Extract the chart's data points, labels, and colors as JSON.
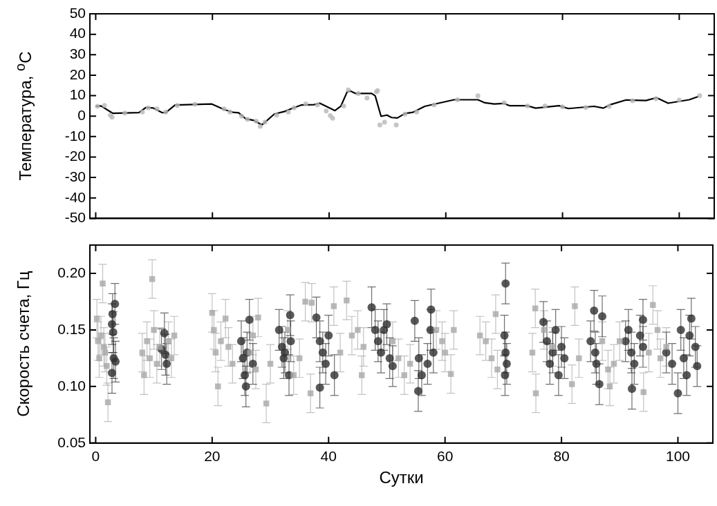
{
  "chart_data": [
    {
      "type": "line",
      "ylabel": "Температура, $^{o}$C",
      "xlim": [
        -1,
        106
      ],
      "xticks": [
        0,
        20,
        40,
        60,
        80,
        100
      ],
      "ylim": [
        -50,
        50
      ],
      "yticks": [
        -50,
        -40,
        -30,
        -20,
        -10,
        0,
        10,
        20,
        30,
        40,
        50
      ],
      "tick_labels": "y",
      "grid": false,
      "legend": false,
      "series": [
        {
          "type": "scatter",
          "marker": "circle",
          "color": "#b8b8b8",
          "x": [
            0.3,
            1.5,
            2.5,
            2.8,
            5,
            8,
            9,
            10.5,
            12,
            14,
            17,
            22,
            23,
            25,
            26,
            27.5,
            28.2,
            29,
            31,
            33,
            34,
            36,
            38,
            39.5,
            40.2,
            40.6,
            42.5,
            43.3,
            45,
            46.5,
            48.1,
            48.3,
            48.7,
            49.5,
            51.5,
            53,
            55,
            58,
            62,
            65.5,
            70,
            74,
            77,
            80,
            84,
            88,
            92,
            96,
            100,
            103.5
          ],
          "values": [
            4.8,
            5.2,
            0.5,
            -0.5,
            1.5,
            2,
            4,
            3.5,
            2,
            5.2,
            5.8,
            3.5,
            2,
            0,
            -1.5,
            -2.5,
            -5,
            -3,
            0.5,
            2,
            4,
            6,
            5.5,
            2.5,
            0.2,
            -1,
            5,
            12.8,
            11,
            8.8,
            11.9,
            12.5,
            -4.3,
            -3,
            -4.3,
            1,
            2,
            5.5,
            8,
            9.9,
            6.5,
            5,
            5,
            4.5,
            4.2,
            4.8,
            7.5,
            8.5,
            7.8,
            10
          ]
        },
        {
          "marker": "none",
          "line_style": "solid",
          "color": "#000000",
          "x": [
            0,
            0.9,
            2.9,
            7.4,
            8.6,
            9.8,
            11.4,
            12,
            13.6,
            16.7,
            19.9,
            22.1,
            23.5,
            24.5,
            25.7,
            27.1,
            28.5,
            30.6,
            32.4,
            33.6,
            35.2,
            37.4,
            38.4,
            41,
            42,
            43.1,
            43.7,
            44.5,
            47.3,
            47.9,
            48.9,
            49.9,
            50.7,
            51.7,
            52.7,
            53.2,
            54.4,
            56.4,
            61.4,
            65.5,
            66.7,
            68.3,
            69.9,
            70.9,
            73.9,
            75.4,
            79.4,
            81,
            85.4,
            87,
            88.2,
            90.9,
            94.3,
            96.1,
            98.1,
            101.7,
            103.3
          ],
          "values": [
            4.8,
            5,
            1.4,
            1.7,
            4.2,
            4,
            1.7,
            1.7,
            5.4,
            5.7,
            5.9,
            3.1,
            1.9,
            1.6,
            -1.3,
            -2.1,
            -4.3,
            1,
            2.3,
            3.7,
            5.4,
            5.6,
            6.3,
            2.7,
            4.8,
            11.9,
            12.2,
            11.1,
            11.1,
            9.9,
            -0.1,
            0.5,
            -0.7,
            -0.9,
            0.8,
            1.4,
            1.9,
            4.8,
            8,
            8,
            6.5,
            5.9,
            6.2,
            5.1,
            5.1,
            3.9,
            5.1,
            3.7,
            4.8,
            3.9,
            5.6,
            7.9,
            7.6,
            9,
            6.3,
            8,
            9.6
          ]
        }
      ]
    },
    {
      "type": "scatter",
      "xlabel": "Сутки",
      "ylabel": "Скорость счета, Гц",
      "xlim": [
        -1,
        106
      ],
      "xticks": [
        0,
        20,
        40,
        60,
        80,
        100
      ],
      "ylim": [
        0.05,
        0.225
      ],
      "yticks": [
        {
          "value": 0.05,
          "label": "0.05"
        },
        {
          "value": 0.1,
          "label": "0.10"
        },
        {
          "value": 0.15,
          "label": "0.15"
        },
        {
          "value": 0.2,
          "label": "0.20"
        }
      ],
      "grid": false,
      "legend": false,
      "series": [
        {
          "marker": "square",
          "color": "#a8a8a8",
          "x": [
            0.2,
            0.4,
            0.6,
            0.9,
            1.2,
            1.4,
            1.6,
            1.9,
            2.1,
            8.0,
            8.3,
            8.8,
            9.3,
            9.7,
            10.0,
            10.5,
            11.0,
            12.5,
            13.0,
            13.5,
            20.0,
            20.3,
            20.6,
            21.0,
            21.5,
            22.3,
            22.8,
            23.5,
            26.5,
            27.0,
            27.5,
            27.9,
            29.3,
            30.0,
            33.0,
            34.0,
            35.0,
            36.0,
            37.1,
            36.9,
            40.9,
            43.1,
            45.7,
            42.0,
            44.0,
            45.0,
            46.0,
            51.0,
            52.0,
            53.0,
            54.0,
            58.5,
            59.5,
            60.0,
            61.0,
            61.5,
            66.0,
            67.0,
            68.0,
            68.7,
            69.0,
            75.0,
            75.5,
            75.6,
            77.0,
            78.5,
            82.3,
            81.8,
            83.0,
            87.0,
            88.0,
            88.3,
            89.0,
            90.0,
            94.1,
            95.0,
            95.7,
            96.5,
            97.0,
            98.0
          ],
          "values": [
            0.16,
            0.14,
            0.125,
            0.145,
            0.191,
            0.135,
            0.13,
            0.118,
            0.086,
            0.13,
            0.11,
            0.14,
            0.125,
            0.195,
            0.15,
            0.12,
            0.135,
            0.14,
            0.125,
            0.145,
            0.165,
            0.15,
            0.13,
            0.1,
            0.14,
            0.16,
            0.135,
            0.12,
            0.13,
            0.145,
            0.115,
            0.161,
            0.085,
            0.12,
            0.15,
            0.11,
            0.125,
            0.175,
            0.174,
            0.094,
            0.171,
            0.176,
            0.11,
            0.13,
            0.145,
            0.15,
            0.135,
            0.14,
            0.125,
            0.11,
            0.12,
            0.15,
            0.14,
            0.13,
            0.111,
            0.15,
            0.145,
            0.14,
            0.125,
            0.164,
            0.115,
            0.13,
            0.169,
            0.094,
            0.15,
            0.135,
            0.171,
            0.102,
            0.125,
            0.14,
            0.115,
            0.1,
            0.12,
            0.14,
            0.095,
            0.13,
            0.172,
            0.15,
            0.125,
            0.135
          ],
          "errors": [
            0.017,
            0.017,
            0.017,
            0.017,
            0.017,
            0.017,
            0.017,
            0.017,
            0.017,
            0.017,
            0.017,
            0.017,
            0.017,
            0.017,
            0.017,
            0.017,
            0.017,
            0.017,
            0.017,
            0.017,
            0.017,
            0.017,
            0.017,
            0.017,
            0.017,
            0.017,
            0.017,
            0.017,
            0.017,
            0.017,
            0.017,
            0.017,
            0.017,
            0.017,
            0.017,
            0.017,
            0.017,
            0.017,
            0.017,
            0.017,
            0.017,
            0.017,
            0.017,
            0.017,
            0.017,
            0.017,
            0.017,
            0.017,
            0.017,
            0.017,
            0.017,
            0.017,
            0.017,
            0.017,
            0.017,
            0.017,
            0.017,
            0.017,
            0.017,
            0.017,
            0.017,
            0.017,
            0.017,
            0.017,
            0.017,
            0.017,
            0.017,
            0.017,
            0.017,
            0.017,
            0.017,
            0.017,
            0.017,
            0.017,
            0.017,
            0.017,
            0.017,
            0.017,
            0.017,
            0.017
          ]
        },
        {
          "marker": "circle",
          "color": "#303030",
          "x": [
            2.9,
            3.3,
            2.8,
            3.0,
            3.1,
            3.4,
            2.8,
            11.8,
            11.3,
            12.0,
            12.2,
            25.0,
            25.3,
            25.6,
            25.8,
            26.0,
            26.4,
            27.0,
            31.5,
            32.0,
            32.3,
            32.5,
            33.2,
            33.4,
            33.5,
            37.9,
            38.5,
            39.0,
            39.5,
            40.0,
            38.5,
            41.0,
            47.4,
            48.0,
            48.5,
            49.0,
            49.5,
            50.0,
            50.5,
            51.0,
            54.8,
            55.5,
            56.0,
            55.4,
            57.0,
            57.5,
            57.6,
            58.0,
            70.4,
            70.2,
            70.4,
            70.6,
            70.3,
            76.9,
            77.5,
            78.0,
            78.5,
            79.0,
            79.5,
            80.0,
            80.5,
            85.6,
            87.0,
            85.0,
            86.0,
            86.5,
            85.8,
            94.0,
            91.0,
            91.5,
            92.0,
            92.5,
            92.1,
            93.5,
            94.0,
            98.0,
            99.0,
            100.0,
            100.5,
            101.0,
            101.5,
            102.0,
            102.3,
            103.0,
            103.3
          ],
          "values": [
            0.164,
            0.173,
            0.155,
            0.148,
            0.125,
            0.122,
            0.112,
            0.147,
            0.133,
            0.128,
            0.12,
            0.14,
            0.125,
            0.11,
            0.1,
            0.13,
            0.159,
            0.12,
            0.15,
            0.135,
            0.125,
            0.13,
            0.11,
            0.163,
            0.14,
            0.161,
            0.14,
            0.13,
            0.12,
            0.145,
            0.099,
            0.11,
            0.17,
            0.15,
            0.14,
            0.13,
            0.15,
            0.155,
            0.125,
            0.118,
            0.158,
            0.125,
            0.11,
            0.096,
            0.12,
            0.15,
            0.168,
            0.13,
            0.191,
            0.145,
            0.13,
            0.12,
            0.11,
            0.157,
            0.14,
            0.12,
            0.13,
            0.15,
            0.11,
            0.135,
            0.125,
            0.167,
            0.162,
            0.14,
            0.12,
            0.102,
            0.13,
            0.159,
            0.14,
            0.15,
            0.13,
            0.12,
            0.098,
            0.145,
            0.135,
            0.13,
            0.12,
            0.094,
            0.15,
            0.125,
            0.11,
            0.145,
            0.16,
            0.135,
            0.118
          ],
          "errors": [
            0.018,
            0.018,
            0.018,
            0.018,
            0.018,
            0.018,
            0.018,
            0.018,
            0.018,
            0.018,
            0.018,
            0.018,
            0.018,
            0.018,
            0.018,
            0.018,
            0.018,
            0.018,
            0.018,
            0.018,
            0.018,
            0.018,
            0.018,
            0.018,
            0.018,
            0.018,
            0.018,
            0.018,
            0.018,
            0.018,
            0.018,
            0.018,
            0.018,
            0.018,
            0.018,
            0.018,
            0.018,
            0.018,
            0.018,
            0.018,
            0.018,
            0.018,
            0.018,
            0.018,
            0.018,
            0.018,
            0.018,
            0.018,
            0.018,
            0.018,
            0.018,
            0.018,
            0.018,
            0.018,
            0.018,
            0.018,
            0.018,
            0.018,
            0.018,
            0.018,
            0.018,
            0.018,
            0.018,
            0.018,
            0.018,
            0.018,
            0.018,
            0.018,
            0.018,
            0.018,
            0.018,
            0.018,
            0.018,
            0.018,
            0.018,
            0.018,
            0.018,
            0.018,
            0.018,
            0.018,
            0.018,
            0.018,
            0.018,
            0.018,
            0.018
          ]
        }
      ]
    }
  ]
}
